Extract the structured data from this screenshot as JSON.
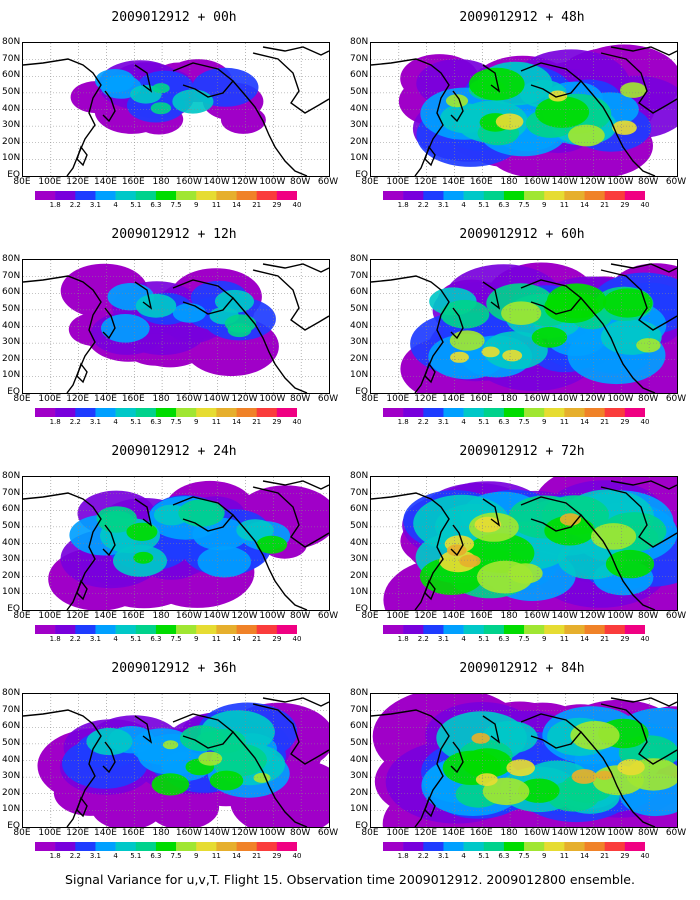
{
  "figure": {
    "caption": "Signal Variance for u,v,T. Flight 15. Observation time 2009012912. 2009012800 ensemble."
  },
  "panels": [
    {
      "title": "2009012912 + 00h",
      "coverage": 0.12,
      "intensity": 0.45
    },
    {
      "title": "2009012912 + 12h",
      "coverage": 0.28,
      "intensity": 0.45
    },
    {
      "title": "2009012912 + 24h",
      "coverage": 0.5,
      "intensity": 0.55
    },
    {
      "title": "2009012912 + 36h",
      "coverage": 0.62,
      "intensity": 0.65
    },
    {
      "title": "2009012912 + 48h",
      "coverage": 0.7,
      "intensity": 0.75
    },
    {
      "title": "2009012912 + 60h",
      "coverage": 0.82,
      "intensity": 0.82
    },
    {
      "title": "2009012912 + 72h",
      "coverage": 0.88,
      "intensity": 0.88
    },
    {
      "title": "2009012912 + 84h",
      "coverage": 0.93,
      "intensity": 0.92
    }
  ],
  "axes": {
    "lat_labels": [
      "80N",
      "70N",
      "60N",
      "50N",
      "40N",
      "30N",
      "20N",
      "10N",
      "EQ"
    ],
    "lon_labels": [
      "80E",
      "100E",
      "120E",
      "140E",
      "160E",
      "180",
      "160W",
      "140W",
      "120W",
      "100W",
      "80W",
      "60W"
    ],
    "lat_range": [
      0,
      80
    ],
    "lon_range": [
      "80E",
      "60W"
    ]
  },
  "colorbar": {
    "labels": [
      "1.8",
      "2.2",
      "3.1",
      "4",
      "5.1",
      "6.3",
      "7.5",
      "9",
      "11",
      "14",
      "21",
      "29",
      "40"
    ],
    "colors": [
      "#a000c8",
      "#7800dc",
      "#1e3cff",
      "#00a0ff",
      "#00c8c8",
      "#00d28c",
      "#00dc00",
      "#a0e632",
      "#e6dc32",
      "#e6af2d",
      "#f08228",
      "#fa3c3c",
      "#f00082"
    ]
  }
}
